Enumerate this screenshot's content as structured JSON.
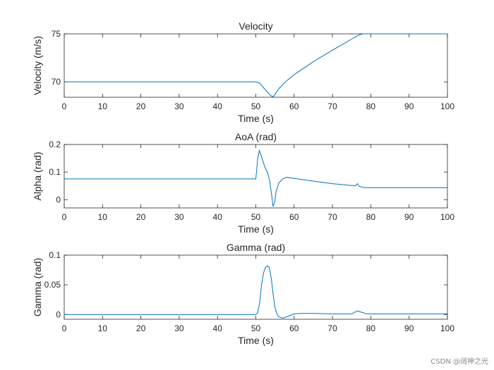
{
  "chart_data": [
    {
      "type": "line",
      "title": "Velocity",
      "xlabel": "Time (s)",
      "ylabel": "Velocity (m/s)",
      "xlim": [
        0,
        100
      ],
      "ylim": [
        68.4,
        75
      ],
      "xticks": [
        0,
        10,
        20,
        30,
        40,
        50,
        60,
        70,
        80,
        90,
        100
      ],
      "yticks": [
        70,
        75
      ],
      "grid": false,
      "series": [
        {
          "name": "Velocity",
          "color": "#0072BD",
          "x": [
            0,
            50,
            51,
            52,
            53,
            54,
            54.5,
            55,
            56,
            58,
            60,
            65,
            70,
            75,
            77,
            78,
            80,
            100
          ],
          "y": [
            70,
            70,
            69.85,
            69.4,
            68.95,
            68.55,
            68.45,
            68.7,
            69.3,
            70.1,
            70.75,
            72.1,
            73.3,
            74.45,
            74.9,
            75,
            75,
            75
          ]
        }
      ]
    },
    {
      "type": "line",
      "title": "AoA (rad)",
      "xlabel": "Time (s)",
      "ylabel": "Alpha (rad)",
      "xlim": [
        0,
        100
      ],
      "ylim": [
        -0.03,
        0.2
      ],
      "xticks": [
        0,
        10,
        20,
        30,
        40,
        50,
        60,
        70,
        80,
        90,
        100
      ],
      "yticks": [
        0,
        0.1,
        0.2
      ],
      "ytick_labels": [
        "0",
        "0.1",
        "0.2"
      ],
      "grid": false,
      "series": [
        {
          "name": "Alpha",
          "color": "#0072BD",
          "x": [
            0,
            50,
            50.5,
            50.9,
            51.5,
            52.3,
            53,
            53.6,
            54.1,
            54.5,
            54.9,
            55.3,
            56,
            57,
            58,
            60,
            65,
            70,
            76,
            76.5,
            77,
            78,
            80,
            100
          ],
          "y": [
            0.075,
            0.075,
            0.15,
            0.178,
            0.155,
            0.12,
            0.1,
            0.07,
            0.02,
            -0.025,
            -0.01,
            0.03,
            0.06,
            0.075,
            0.081,
            0.077,
            0.067,
            0.058,
            0.05,
            0.058,
            0.048,
            0.044,
            0.043,
            0.043
          ]
        }
      ]
    },
    {
      "type": "line",
      "title": "Gamma (rad)",
      "xlabel": "Time (s)",
      "ylabel": "Gamma (rad)",
      "xlim": [
        0,
        100
      ],
      "ylim": [
        -0.008,
        0.1
      ],
      "xticks": [
        0,
        10,
        20,
        30,
        40,
        50,
        60,
        70,
        80,
        90,
        100
      ],
      "yticks": [
        0,
        0.05,
        0.1
      ],
      "ytick_labels": [
        "0",
        "0.05",
        "0.1"
      ],
      "grid": false,
      "series": [
        {
          "name": "Gamma",
          "color": "#0072BD",
          "x": [
            0,
            50,
            50.5,
            51,
            51.5,
            52,
            52.5,
            53,
            53.5,
            54,
            54.5,
            55,
            55.5,
            56,
            57,
            58,
            60,
            62,
            65,
            70,
            75,
            76.5,
            77.5,
            79,
            100
          ],
          "y": [
            0,
            0,
            0.003,
            0.02,
            0.05,
            0.07,
            0.079,
            0.082,
            0.08,
            0.062,
            0.035,
            0.012,
            0.001,
            -0.004,
            -0.006,
            -0.004,
            0.001,
            0.002,
            0.002,
            0.001,
            0.001,
            0.006,
            0.004,
            0.001,
            0.001
          ]
        }
      ]
    }
  ],
  "watermark": "CSDN @阔神之光"
}
